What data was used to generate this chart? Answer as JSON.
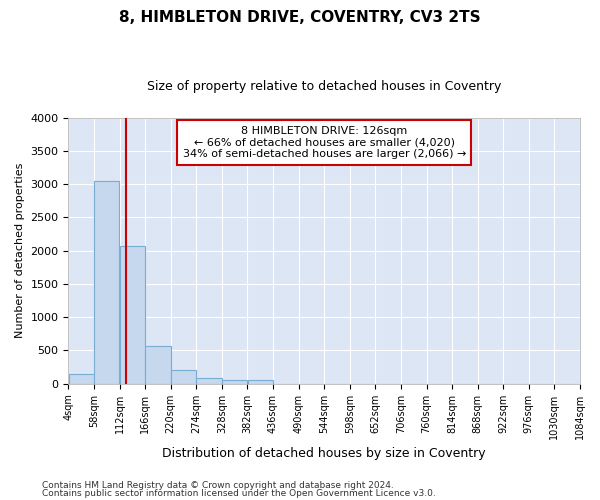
{
  "title": "8, HIMBLETON DRIVE, COVENTRY, CV3 2TS",
  "subtitle": "Size of property relative to detached houses in Coventry",
  "xlabel": "Distribution of detached houses by size in Coventry",
  "ylabel": "Number of detached properties",
  "annotation_lines": [
    "8 HIMBLETON DRIVE: 126sqm",
    "← 66% of detached houses are smaller (4,020)",
    "34% of semi-detached houses are larger (2,066) →"
  ],
  "bar_color": "#c5d8ee",
  "bar_edge_color": "#7aadd4",
  "fig_bg_color": "#ffffff",
  "plot_bg_color": "#dce6f5",
  "grid_color": "#ffffff",
  "vline_color": "#cc0000",
  "vline_x": 126,
  "bin_edges": [
    4,
    58,
    112,
    166,
    220,
    274,
    328,
    382,
    436,
    490,
    544,
    598,
    652,
    706,
    760,
    814,
    868,
    922,
    976,
    1030,
    1084
  ],
  "bin_heights": [
    150,
    3050,
    2075,
    560,
    200,
    80,
    60,
    50,
    0,
    0,
    0,
    0,
    0,
    0,
    0,
    0,
    0,
    0,
    0,
    0
  ],
  "tick_labels": [
    "4sqm",
    "58sqm",
    "112sqm",
    "166sqm",
    "220sqm",
    "274sqm",
    "328sqm",
    "382sqm",
    "436sqm",
    "490sqm",
    "544sqm",
    "598sqm",
    "652sqm",
    "706sqm",
    "760sqm",
    "814sqm",
    "868sqm",
    "922sqm",
    "976sqm",
    "1030sqm",
    "1084sqm"
  ],
  "ylim": [
    0,
    4000
  ],
  "yticks": [
    0,
    500,
    1000,
    1500,
    2000,
    2500,
    3000,
    3500,
    4000
  ],
  "footnote1": "Contains HM Land Registry data © Crown copyright and database right 2024.",
  "footnote2": "Contains public sector information licensed under the Open Government Licence v3.0.",
  "box_color": "#ffffff",
  "box_edge_color": "#cc0000",
  "title_fontsize": 11,
  "subtitle_fontsize": 9
}
